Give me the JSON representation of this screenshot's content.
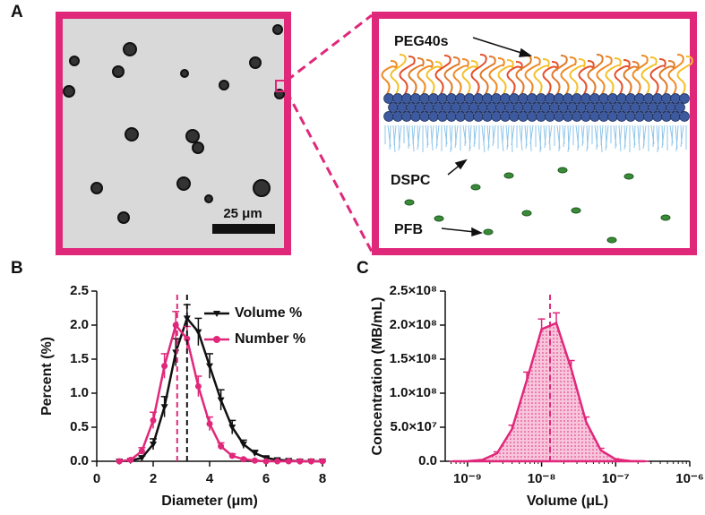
{
  "panel_a": {
    "label": "A",
    "scale_bar": "25 μm",
    "labels": [
      "PEG40s",
      "DSPC",
      "PFB"
    ]
  },
  "chart_data": [
    {
      "type": "line",
      "panel_label": "B",
      "x_label": "Diameter (μm)",
      "y_label": "Percent (%)",
      "xlim": [
        0,
        8
      ],
      "xticks": [
        0,
        2,
        4,
        6,
        8
      ],
      "ylim": [
        0,
        2.5
      ],
      "yticks": [
        {
          "value": 0,
          "label": "0.0"
        },
        0.5,
        {
          "value": 1,
          "label": "1.0"
        },
        1.5,
        {
          "value": 2,
          "label": "2.0"
        },
        2.5
      ],
      "legend": "upper right",
      "x": [
        0.8,
        1.2,
        1.6,
        2.0,
        2.4,
        2.8,
        3.2,
        3.6,
        4.0,
        4.4,
        4.8,
        5.2,
        5.6,
        6.0,
        6.4,
        6.8,
        7.2,
        7.6,
        8.0
      ],
      "series": [
        {
          "name": "Volume %",
          "color": "#111111",
          "marker": "triangle",
          "values": [
            0,
            0.01,
            0.05,
            0.25,
            0.8,
            1.6,
            2.1,
            1.9,
            1.4,
            0.9,
            0.5,
            0.25,
            0.12,
            0.05,
            0.02,
            0.01,
            0,
            0,
            0
          ],
          "errors": [
            0,
            0.01,
            0.03,
            0.08,
            0.15,
            0.2,
            0.2,
            0.2,
            0.18,
            0.15,
            0.1,
            0.06,
            0.04,
            0.02,
            0.01,
            0.01,
            0,
            0,
            0
          ]
        },
        {
          "name": "Number %",
          "color": "#e0287a",
          "marker": "circle",
          "values": [
            0,
            0.02,
            0.15,
            0.6,
            1.4,
            2.0,
            1.8,
            1.1,
            0.55,
            0.22,
            0.08,
            0.03,
            0.01,
            0,
            0,
            0,
            0,
            0,
            0
          ],
          "errors": [
            0,
            0.01,
            0.05,
            0.12,
            0.18,
            0.2,
            0.18,
            0.15,
            0.1,
            0.05,
            0.03,
            0.01,
            0.01,
            0,
            0,
            0,
            0,
            0,
            0
          ]
        }
      ],
      "reference_lines": [
        {
          "x": 2.85,
          "color": "#e0287a"
        },
        {
          "x": 3.2,
          "color": "#111111"
        }
      ]
    },
    {
      "type": "area",
      "panel_label": "C",
      "x_label": "Volume (μL)",
      "y_label": "Concentration (MB/mL)",
      "log_x": true,
      "xlim": [
        5e-10,
        1e-06
      ],
      "xticks": [
        {
          "value": 1e-09,
          "label": "10⁻⁹"
        },
        {
          "value": 1e-08,
          "label": "10⁻⁸"
        },
        {
          "value": 1e-07,
          "label": "10⁻⁷"
        },
        {
          "value": 1e-06,
          "label": "10⁻⁶"
        }
      ],
      "ylim": [
        0,
        250000000
      ],
      "yticks": [
        {
          "value": 0,
          "label": "0.0"
        },
        {
          "value": 50000000,
          "label": "5.0×10⁷"
        },
        {
          "value": 100000000,
          "label": "1.0×10⁸"
        },
        {
          "value": 150000000,
          "label": "1.5×10⁸"
        },
        {
          "value": 200000000,
          "label": "2.0×10⁸"
        },
        {
          "value": 250000000,
          "label": "2.5×10⁸"
        }
      ],
      "x": [
        6.31e-10,
        1e-09,
        1.58e-09,
        2.51e-09,
        3.98e-09,
        6.31e-09,
        1e-08,
        1.58e-08,
        2.51e-08,
        3.98e-08,
        6.31e-08,
        1e-07,
        1.58e-07,
        2.51e-07
      ],
      "series": [
        {
          "name": "Concentration",
          "color": "#e0287a",
          "values": [
            0,
            200000,
            1900000,
            11800000,
            47000000,
            119000000,
            194000000,
            203000000,
            136000000,
            58000000,
            16000000,
            2900000,
            300000,
            0
          ],
          "errors": [
            0,
            100000,
            500000,
            2000000,
            6000000,
            12000000,
            15000000,
            15000000,
            12000000,
            7000000,
            3000000,
            800000,
            100000,
            0
          ]
        }
      ],
      "reference_lines": [
        {
          "x": 1.3e-08,
          "color": "#e0287a"
        }
      ]
    }
  ]
}
